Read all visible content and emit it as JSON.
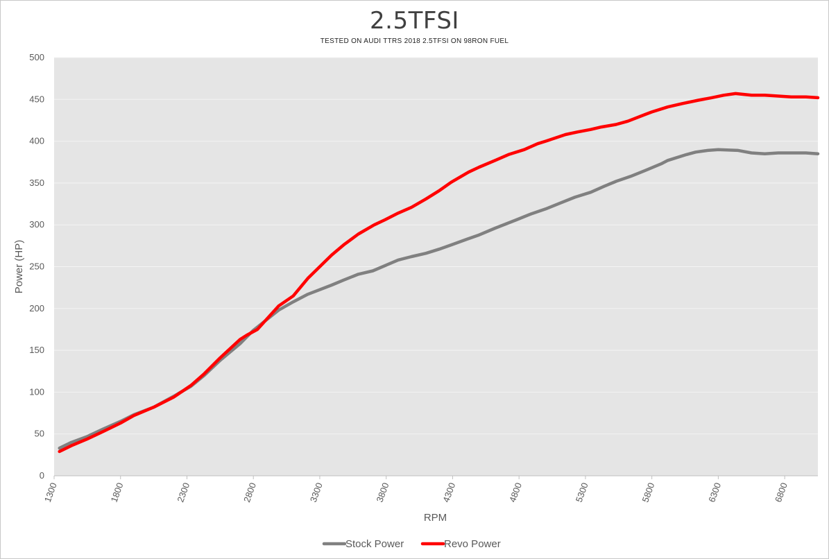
{
  "chart_data": {
    "type": "line",
    "title": "2.5TFSI",
    "subtitle": "TESTED ON AUDI TTRS 2018 2.5TFSI ON 98RON FUEL",
    "xlabel": "RPM",
    "ylabel": "Power (HP)",
    "xlim": [
      1300,
      7050
    ],
    "ylim": [
      0,
      500
    ],
    "yticks": [
      0,
      50,
      100,
      150,
      200,
      250,
      300,
      350,
      400,
      450,
      500
    ],
    "xticks": [
      1300,
      1800,
      2300,
      2800,
      3300,
      3800,
      4300,
      4800,
      5300,
      5800,
      6300,
      6800
    ],
    "grid": true,
    "background": "#e5e5e5",
    "legend_position": "bottom",
    "series": [
      {
        "name": "Stock Power",
        "color": "#808080",
        "points": [
          [
            1340,
            33
          ],
          [
            1430,
            40
          ],
          [
            1550,
            47
          ],
          [
            1670,
            56
          ],
          [
            1800,
            65
          ],
          [
            1900,
            73
          ],
          [
            2050,
            82
          ],
          [
            2200,
            95
          ],
          [
            2330,
            107
          ],
          [
            2430,
            120
          ],
          [
            2550,
            138
          ],
          [
            2700,
            158
          ],
          [
            2800,
            174
          ],
          [
            2990,
            198
          ],
          [
            3100,
            208
          ],
          [
            3210,
            217
          ],
          [
            3390,
            228
          ],
          [
            3480,
            234
          ],
          [
            3590,
            241
          ],
          [
            3700,
            245
          ],
          [
            3890,
            258
          ],
          [
            3990,
            262
          ],
          [
            4100,
            266
          ],
          [
            4200,
            271
          ],
          [
            4290,
            276
          ],
          [
            4410,
            283
          ],
          [
            4500,
            288
          ],
          [
            4620,
            296
          ],
          [
            4780,
            306
          ],
          [
            4890,
            313
          ],
          [
            5000,
            319
          ],
          [
            5110,
            326
          ],
          [
            5220,
            333
          ],
          [
            5340,
            339
          ],
          [
            5440,
            346
          ],
          [
            5530,
            352
          ],
          [
            5640,
            358
          ],
          [
            5750,
            365
          ],
          [
            5870,
            373
          ],
          [
            5920,
            377
          ],
          [
            6060,
            384
          ],
          [
            6130,
            387
          ],
          [
            6220,
            389
          ],
          [
            6300,
            390
          ],
          [
            6450,
            389
          ],
          [
            6550,
            386
          ],
          [
            6650,
            385
          ],
          [
            6750,
            386
          ],
          [
            6850,
            386
          ],
          [
            6960,
            386
          ],
          [
            7050,
            385
          ]
        ]
      },
      {
        "name": "Revo Power",
        "color": "#ff0000",
        "points": [
          [
            1340,
            29
          ],
          [
            1430,
            36
          ],
          [
            1550,
            44
          ],
          [
            1670,
            53
          ],
          [
            1800,
            63
          ],
          [
            1900,
            72
          ],
          [
            2050,
            82
          ],
          [
            2200,
            94
          ],
          [
            2330,
            108
          ],
          [
            2430,
            122
          ],
          [
            2550,
            141
          ],
          [
            2700,
            163
          ],
          [
            2750,
            168
          ],
          [
            2830,
            175
          ],
          [
            2990,
            203
          ],
          [
            3100,
            215
          ],
          [
            3210,
            236
          ],
          [
            3390,
            264
          ],
          [
            3480,
            276
          ],
          [
            3590,
            289
          ],
          [
            3710,
            300
          ],
          [
            3790,
            306
          ],
          [
            3890,
            314
          ],
          [
            3990,
            321
          ],
          [
            4100,
            331
          ],
          [
            4200,
            341
          ],
          [
            4290,
            351
          ],
          [
            4420,
            363
          ],
          [
            4500,
            369
          ],
          [
            4620,
            377
          ],
          [
            4720,
            384
          ],
          [
            4840,
            390
          ],
          [
            4940,
            397
          ],
          [
            5000,
            400
          ],
          [
            5150,
            408
          ],
          [
            5240,
            411
          ],
          [
            5340,
            414
          ],
          [
            5420,
            417
          ],
          [
            5530,
            420
          ],
          [
            5620,
            424
          ],
          [
            5750,
            432
          ],
          [
            5800,
            435
          ],
          [
            5920,
            441
          ],
          [
            6030,
            445
          ],
          [
            6150,
            449
          ],
          [
            6250,
            452
          ],
          [
            6340,
            455
          ],
          [
            6430,
            457
          ],
          [
            6550,
            455
          ],
          [
            6650,
            455
          ],
          [
            6750,
            454
          ],
          [
            6850,
            453
          ],
          [
            6960,
            453
          ],
          [
            7050,
            452
          ]
        ]
      }
    ]
  }
}
